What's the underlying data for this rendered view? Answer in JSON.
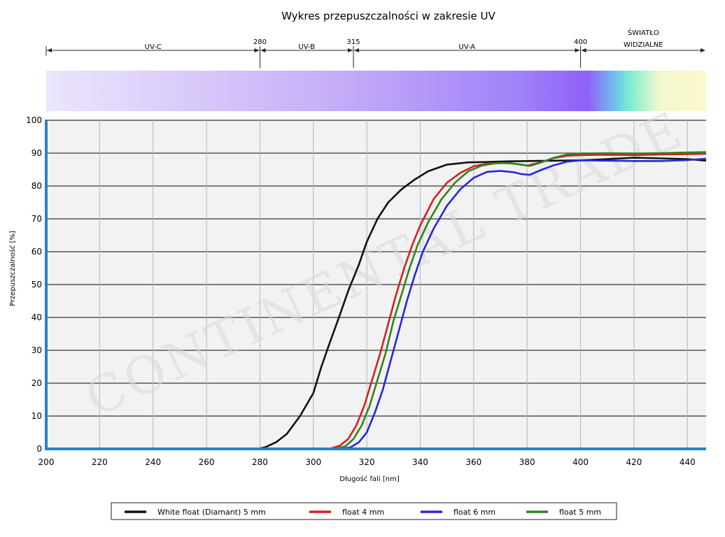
{
  "chart_data": {
    "type": "line",
    "title": "Wykres przepuszczalności w zakresie UV",
    "xlabel": "Długość fali [nm]",
    "ylabel": "Przepuszczalność [%]",
    "xlim": [
      200,
      447
    ],
    "ylim": [
      0,
      100
    ],
    "x_ticks": [
      200,
      220,
      240,
      260,
      280,
      300,
      320,
      340,
      360,
      380,
      400,
      420,
      440
    ],
    "y_ticks": [
      0,
      10,
      20,
      30,
      40,
      50,
      60,
      70,
      80,
      90,
      100
    ],
    "grid": true,
    "legend_position": "bottom",
    "bands": [
      {
        "label": "UV-C",
        "from": 200,
        "to": 280
      },
      {
        "label": "UV-B",
        "from": 280,
        "to": 315
      },
      {
        "label": "UV-A",
        "from": 315,
        "to": 400
      },
      {
        "label": "ŚWIATŁO WIDZIALNE",
        "from": 400,
        "to": 447
      }
    ],
    "band_boundaries": [
      280,
      315,
      400
    ],
    "watermark": "CONTINENTAL TRADE",
    "series": [
      {
        "name": "White float (Diamant) 5 mm",
        "color": "#111111",
        "points": [
          [
            200,
            0
          ],
          [
            279,
            0
          ],
          [
            282,
            0.5
          ],
          [
            286,
            2
          ],
          [
            290,
            4.5
          ],
          [
            295,
            10
          ],
          [
            300,
            17
          ],
          [
            303,
            25
          ],
          [
            306,
            32
          ],
          [
            310,
            41
          ],
          [
            313,
            48
          ],
          [
            317,
            56
          ],
          [
            320,
            63
          ],
          [
            324,
            70
          ],
          [
            328,
            75
          ],
          [
            333,
            79
          ],
          [
            338,
            82
          ],
          [
            343,
            84.5
          ],
          [
            350,
            86.5
          ],
          [
            358,
            87.2
          ],
          [
            365,
            87.3
          ],
          [
            372,
            87.5
          ],
          [
            380,
            87.6
          ],
          [
            390,
            87.7
          ],
          [
            400,
            87.8
          ],
          [
            410,
            88.2
          ],
          [
            420,
            88.6
          ],
          [
            430,
            88.4
          ],
          [
            440,
            88.2
          ],
          [
            447,
            87.7
          ]
        ]
      },
      {
        "name": "float 4 mm",
        "color": "#d42020",
        "points": [
          [
            200,
            0
          ],
          [
            306,
            0
          ],
          [
            310,
            1
          ],
          [
            313,
            3
          ],
          [
            316,
            7
          ],
          [
            319,
            13
          ],
          [
            322,
            21
          ],
          [
            325,
            29
          ],
          [
            328,
            38
          ],
          [
            331,
            47
          ],
          [
            334,
            55
          ],
          [
            337,
            62
          ],
          [
            340,
            68
          ],
          [
            345,
            76
          ],
          [
            350,
            81
          ],
          [
            355,
            84
          ],
          [
            360,
            86
          ],
          [
            365,
            86.8
          ],
          [
            370,
            87
          ],
          [
            375,
            86.8
          ],
          [
            380,
            86.2
          ],
          [
            385,
            87.2
          ],
          [
            390,
            88.5
          ],
          [
            395,
            89.2
          ],
          [
            400,
            89.4
          ],
          [
            410,
            89.5
          ],
          [
            420,
            89.4
          ],
          [
            430,
            89.6
          ],
          [
            440,
            89.7
          ],
          [
            447,
            89.8
          ]
        ]
      },
      {
        "name": "float 6 mm",
        "color": "#2727d8",
        "points": [
          [
            200,
            0
          ],
          [
            310,
            0
          ],
          [
            314,
            0.5
          ],
          [
            317,
            2
          ],
          [
            320,
            5
          ],
          [
            323,
            11
          ],
          [
            326,
            18
          ],
          [
            329,
            27
          ],
          [
            332,
            36
          ],
          [
            335,
            45
          ],
          [
            338,
            53
          ],
          [
            341,
            60
          ],
          [
            345,
            67
          ],
          [
            350,
            74
          ],
          [
            355,
            79
          ],
          [
            360,
            82.5
          ],
          [
            365,
            84.3
          ],
          [
            370,
            84.6
          ],
          [
            375,
            84.2
          ],
          [
            378,
            83.6
          ],
          [
            381,
            83.4
          ],
          [
            385,
            84.8
          ],
          [
            390,
            86.3
          ],
          [
            395,
            87.4
          ],
          [
            400,
            87.8
          ],
          [
            410,
            87.7
          ],
          [
            420,
            87.6
          ],
          [
            430,
            87.6
          ],
          [
            440,
            87.9
          ],
          [
            447,
            88.3
          ]
        ]
      },
      {
        "name": "float 5 mm",
        "color": "#2e8420",
        "points": [
          [
            200,
            0
          ],
          [
            308,
            0
          ],
          [
            312,
            0.8
          ],
          [
            315,
            3
          ],
          [
            318,
            7
          ],
          [
            321,
            13
          ],
          [
            324,
            21
          ],
          [
            327,
            29
          ],
          [
            330,
            39
          ],
          [
            333,
            47
          ],
          [
            336,
            55
          ],
          [
            339,
            62
          ],
          [
            343,
            69
          ],
          [
            348,
            76
          ],
          [
            353,
            81
          ],
          [
            358,
            84.5
          ],
          [
            363,
            86.2
          ],
          [
            368,
            86.9
          ],
          [
            373,
            87
          ],
          [
            378,
            86.5
          ],
          [
            381,
            86.1
          ],
          [
            385,
            87.1
          ],
          [
            390,
            88.6
          ],
          [
            395,
            89.6
          ],
          [
            400,
            89.9
          ],
          [
            410,
            90
          ],
          [
            420,
            89.9
          ],
          [
            430,
            90
          ],
          [
            440,
            90.2
          ],
          [
            447,
            90.3
          ]
        ]
      }
    ]
  }
}
